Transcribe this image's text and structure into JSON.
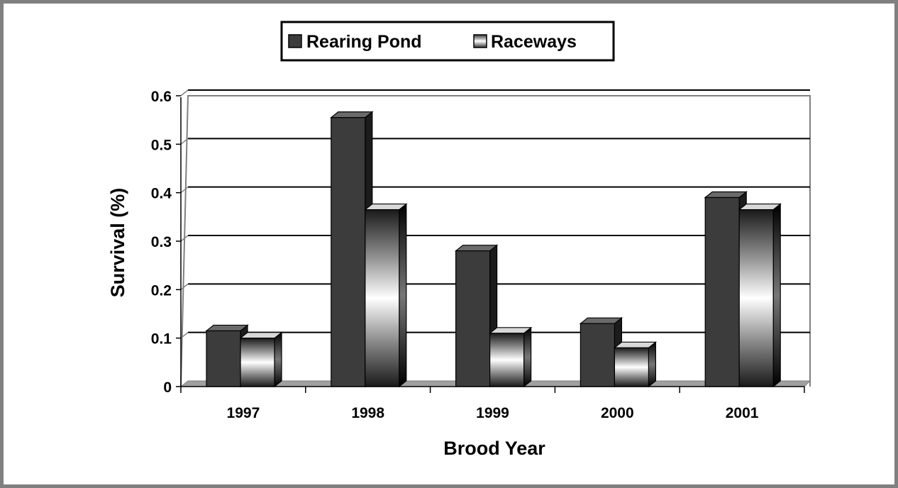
{
  "chart_data": {
    "type": "bar",
    "title": "",
    "xlabel": "Brood Year",
    "ylabel": "Survival (%)",
    "categories": [
      "1997",
      "1998",
      "1999",
      "2000",
      "2001"
    ],
    "series": [
      {
        "name": "Rearing Pond",
        "values": [
          0.115,
          0.555,
          0.28,
          0.13,
          0.39
        ],
        "color": "#3c3c3c",
        "style": "solid-dark"
      },
      {
        "name": "Raceways",
        "values": [
          0.1,
          0.365,
          0.11,
          0.08,
          0.365
        ],
        "color": "#ffffff",
        "style": "gradient-dark-light-dark"
      }
    ],
    "ylim": [
      0,
      0.6
    ],
    "yticks": [
      "0",
      "0.1",
      "0.2",
      "0.3",
      "0.4",
      "0.5",
      "0.6"
    ],
    "grid": true,
    "legend_position": "top-center",
    "bar_style": "3d"
  }
}
